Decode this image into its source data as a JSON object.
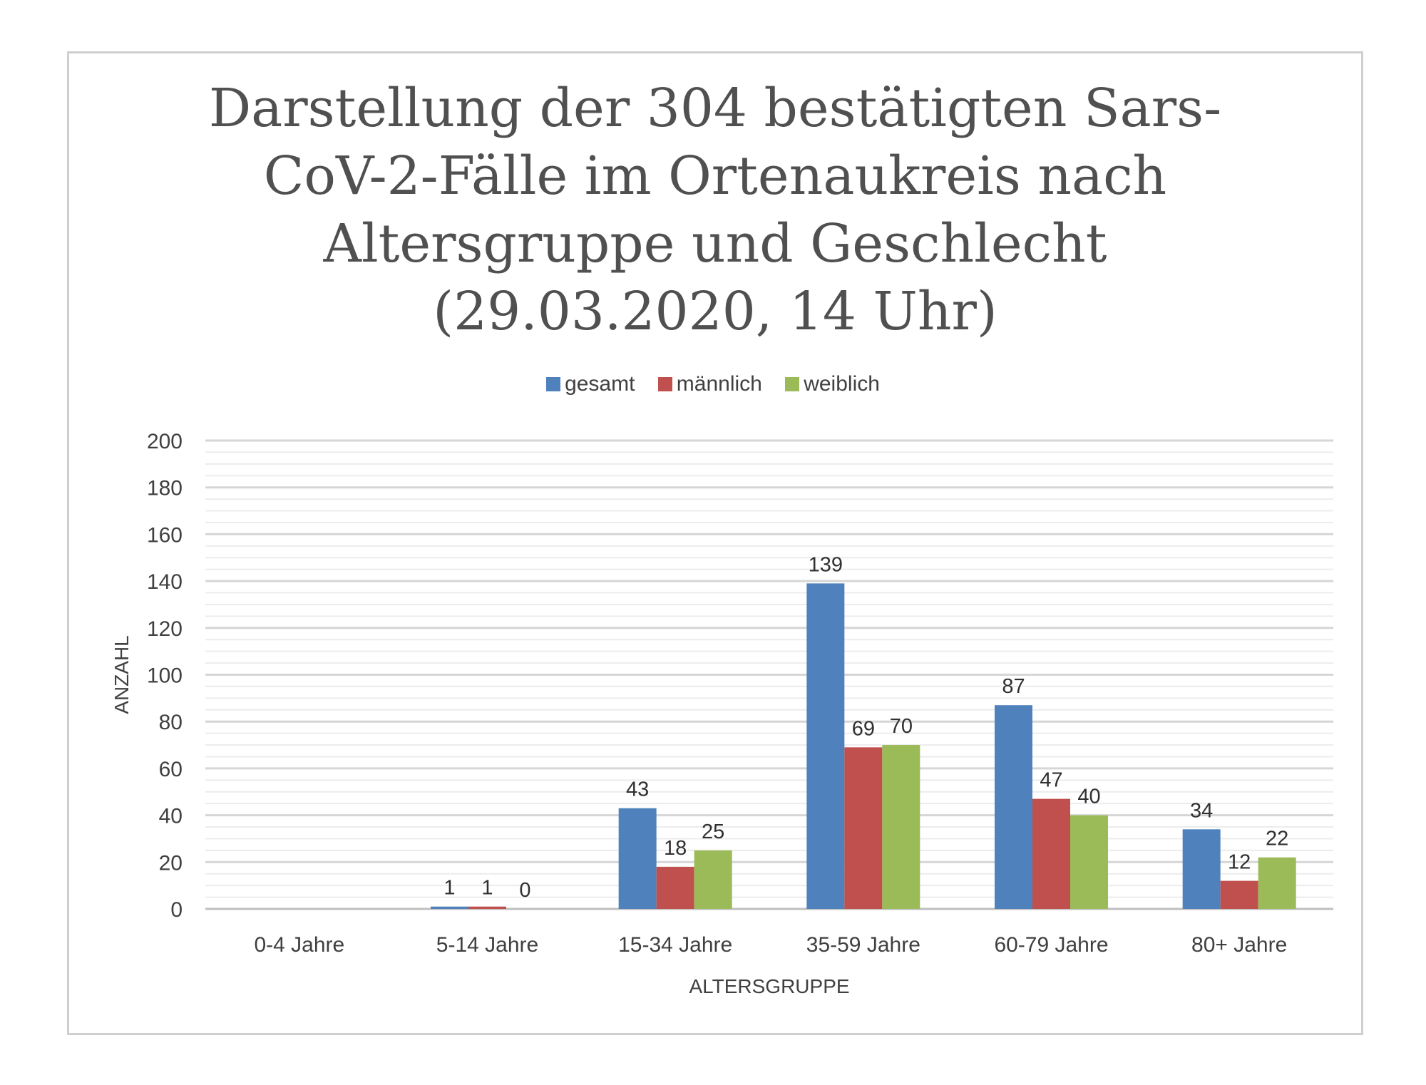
{
  "chart_data": {
    "type": "bar",
    "title_lines": [
      "Darstellung der 304 bestätigten Sars-",
      "CoV-2-Fälle im Ortenaukreis nach",
      "Altersgruppe und Geschlecht",
      "(29.03.2020, 14 Uhr)"
    ],
    "categories": [
      "0-4 Jahre",
      "5-14 Jahre",
      "15-34 Jahre",
      "35-59 Jahre",
      "60-79 Jahre",
      "80+ Jahre"
    ],
    "series": [
      {
        "name": "gesamt",
        "color": "#4f81bd",
        "values": [
          null,
          1,
          43,
          139,
          87,
          34
        ]
      },
      {
        "name": "männlich",
        "color": "#c0504d",
        "values": [
          null,
          1,
          18,
          69,
          47,
          12
        ]
      },
      {
        "name": "weiblich",
        "color": "#9bbb59",
        "values": [
          null,
          0,
          25,
          70,
          40,
          22
        ]
      }
    ],
    "xlabel": "ALTERSGRUPPE",
    "ylabel": "ANZAHL",
    "ylim": [
      0,
      200
    ],
    "y_ticks": [
      0,
      20,
      40,
      60,
      80,
      100,
      120,
      140,
      160,
      180,
      200
    ],
    "legend_position": "top-center",
    "grid": true
  }
}
